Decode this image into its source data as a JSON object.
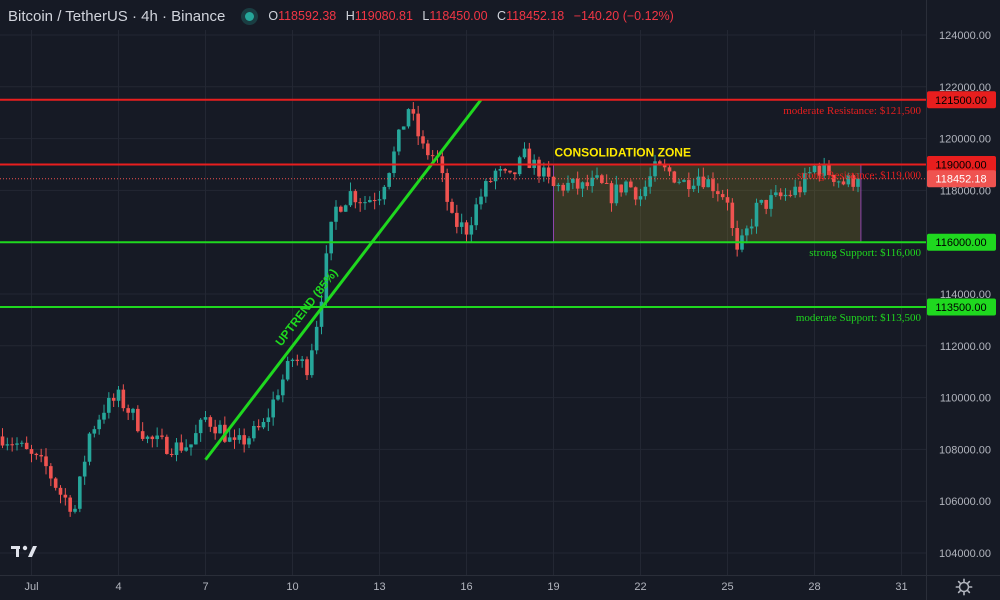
{
  "header": {
    "symbol": "Bitcoin / TetherUS · 4h · Binance",
    "open_label": "O",
    "open": "118592.38",
    "high_label": "H",
    "high": "119080.81",
    "low_label": "L",
    "low": "118450.00",
    "close_label": "C",
    "close": "118452.18",
    "change": "−140.20 (−0.12%)"
  },
  "chart_data": {
    "type": "candlestick",
    "title": "Bitcoin / TetherUS · 4h · Binance",
    "ylim": [
      103500,
      125000
    ],
    "y_ticks": [
      104000,
      106000,
      108000,
      110000,
      112000,
      114000,
      116000,
      118000,
      120000,
      122000,
      124000
    ],
    "y_tick_labels": [
      "104000.00",
      "106000.00",
      "108000.00",
      "110000.00",
      "112000.00",
      "114000.00",
      "116000.00",
      "118000.00",
      "120000.00",
      "122000.00",
      "124000.00"
    ],
    "x_ticks": [
      {
        "day": 1,
        "label": "Jul"
      },
      {
        "day": 4,
        "label": "4"
      },
      {
        "day": 7,
        "label": "7"
      },
      {
        "day": 10,
        "label": "10"
      },
      {
        "day": 13,
        "label": "13"
      },
      {
        "day": 16,
        "label": "16"
      },
      {
        "day": 19,
        "label": "19"
      },
      {
        "day": 22,
        "label": "22"
      },
      {
        "day": 25,
        "label": "25"
      },
      {
        "day": 28,
        "label": "28"
      },
      {
        "day": 31,
        "label": "31"
      }
    ],
    "x_range_days": [
      0.0,
      31.4
    ],
    "candles_per_day": 6,
    "ohlc_anchors": [
      [
        0.0,
        108500
      ],
      [
        0.5,
        108200
      ],
      [
        1.0,
        107700
      ],
      [
        1.5,
        107300
      ],
      [
        2.0,
        106300
      ],
      [
        2.5,
        105700
      ],
      [
        3.0,
        108600
      ],
      [
        3.5,
        109600
      ],
      [
        4.0,
        110000
      ],
      [
        4.5,
        109300
      ],
      [
        5.0,
        108400
      ],
      [
        5.5,
        108200
      ],
      [
        6.0,
        108100
      ],
      [
        6.5,
        108200
      ],
      [
        7.0,
        109200
      ],
      [
        7.5,
        108800
      ],
      [
        8.0,
        108100
      ],
      [
        8.5,
        108500
      ],
      [
        9.0,
        108900
      ],
      [
        9.5,
        110300
      ],
      [
        10.0,
        111500
      ],
      [
        10.5,
        111200
      ],
      [
        10.8,
        112700
      ],
      [
        11.0,
        114000
      ],
      [
        11.3,
        116300
      ],
      [
        11.5,
        117300
      ],
      [
        12.0,
        117900
      ],
      [
        12.5,
        117600
      ],
      [
        13.0,
        117900
      ],
      [
        13.5,
        119400
      ],
      [
        14.0,
        121200
      ],
      [
        14.5,
        119600
      ],
      [
        15.0,
        119200
      ],
      [
        15.5,
        116800
      ],
      [
        16.0,
        116500
      ],
      [
        16.5,
        117800
      ],
      [
        17.0,
        118700
      ],
      [
        17.5,
        118400
      ],
      [
        18.0,
        119300
      ],
      [
        18.5,
        118800
      ],
      [
        19.0,
        118100
      ],
      [
        19.5,
        118200
      ],
      [
        20.0,
        118100
      ],
      [
        20.5,
        118300
      ],
      [
        21.0,
        117800
      ],
      [
        21.5,
        118300
      ],
      [
        22.0,
        117800
      ],
      [
        22.5,
        118800
      ],
      [
        23.0,
        118700
      ],
      [
        23.5,
        118300
      ],
      [
        24.0,
        118600
      ],
      [
        24.5,
        118200
      ],
      [
        25.0,
        117700
      ],
      [
        25.3,
        115400
      ],
      [
        25.6,
        116200
      ],
      [
        26.0,
        117300
      ],
      [
        26.5,
        117600
      ],
      [
        27.0,
        117800
      ],
      [
        27.5,
        118100
      ],
      [
        28.0,
        118900
      ],
      [
        28.5,
        118700
      ],
      [
        29.0,
        118300
      ],
      [
        29.5,
        118452
      ]
    ],
    "last_price": 118452.18,
    "price_lines": [
      {
        "price": 121500,
        "price_label": "121500.00",
        "text": "moderate Resistance: $121,500",
        "color": "#e81e1e"
      },
      {
        "price": 119000,
        "price_label": "119000.00",
        "text": "strong Resistance: $119,000",
        "color": "#e81e1e"
      },
      {
        "price": 116000,
        "price_label": "116000.00",
        "text": "strong Support: $116,000",
        "color": "#1fd81f"
      },
      {
        "price": 113500,
        "price_label": "113500.00",
        "text": "moderate Support: $113,500",
        "color": "#1fd81f"
      }
    ],
    "last_price_label": "118452.18",
    "zone": {
      "label": "CONSOLIDATION ZONE",
      "from_day": 19.0,
      "to_day": 29.6,
      "low": 116000,
      "high": 119000
    },
    "trendline": {
      "label": "UPTREND (85%)",
      "from_day": 7.0,
      "from_price": 107600,
      "to_day": 16.5,
      "to_price": 121500
    },
    "colors": {
      "up": "#26a69a",
      "down": "#ef5350",
      "grid": "#232733",
      "text": "#b2b5be",
      "background": "#161a25"
    }
  }
}
